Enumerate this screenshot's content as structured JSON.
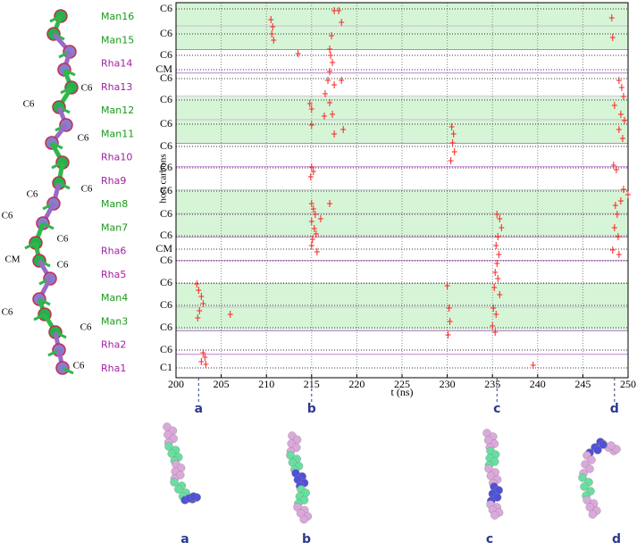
{
  "chart_data": {
    "type": "scatter",
    "ylabel": "host carbons",
    "xlabel": "t (ns)",
    "color": "#ff2020",
    "xlim": [
      200,
      250
    ],
    "xticks": [
      200,
      205,
      210,
      215,
      220,
      225,
      230,
      235,
      240,
      245,
      250
    ],
    "ylim": [
      0,
      420
    ],
    "yticks": [
      {
        "value": 413,
        "label": "C6"
      },
      {
        "value": 385,
        "label": "C6"
      },
      {
        "value": 361,
        "label": "C6"
      },
      {
        "value": 345,
        "label": "CM"
      },
      {
        "value": 335,
        "label": "C6"
      },
      {
        "value": 311,
        "label": "C6"
      },
      {
        "value": 284,
        "label": "C6"
      },
      {
        "value": 259,
        "label": "C6"
      },
      {
        "value": 235,
        "label": "C6"
      },
      {
        "value": 209,
        "label": "C6"
      },
      {
        "value": 183,
        "label": "C6"
      },
      {
        "value": 159,
        "label": "C6"
      },
      {
        "value": 144,
        "label": "CM"
      },
      {
        "value": 131,
        "label": "C6"
      },
      {
        "value": 106,
        "label": "C6"
      },
      {
        "value": 81,
        "label": "C6"
      },
      {
        "value": 56,
        "label": "C6"
      },
      {
        "value": 31,
        "label": "C6"
      },
      {
        "value": 11,
        "label": "C1"
      }
    ],
    "grid": true,
    "residues": [
      {
        "name": "Man16",
        "color": "#1a9a1a"
      },
      {
        "name": "Man15",
        "color": "#1a9a1a"
      },
      {
        "name": "Rha14",
        "color": "#a020a0"
      },
      {
        "name": "Rha13",
        "color": "#a020a0"
      },
      {
        "name": "Man12",
        "color": "#1a9a1a"
      },
      {
        "name": "Man11",
        "color": "#1a9a1a"
      },
      {
        "name": "Rha10",
        "color": "#a020a0"
      },
      {
        "name": "Rha9",
        "color": "#a020a0"
      },
      {
        "name": "Man8",
        "color": "#1a9a1a"
      },
      {
        "name": "Man7",
        "color": "#1a9a1a"
      },
      {
        "name": "Rha6",
        "color": "#a020a0"
      },
      {
        "name": "Rha5",
        "color": "#a020a0"
      },
      {
        "name": "Man4",
        "color": "#1a9a1a"
      },
      {
        "name": "Man3",
        "color": "#1a9a1a"
      },
      {
        "name": "Rha2",
        "color": "#a020a0"
      },
      {
        "name": "Rha1",
        "color": "#a020a0"
      }
    ],
    "molecule_labels": [
      "C6",
      "C6",
      "C6",
      "C6",
      "C6",
      "C6",
      "C6",
      "CM",
      "C6",
      "C6",
      "C6",
      "C6"
    ],
    "annotations": [
      {
        "text": "a",
        "x": 202.5
      },
      {
        "text": "b",
        "x": 215
      },
      {
        "text": "c",
        "x": 235.5
      },
      {
        "text": "d",
        "x": 248.5
      }
    ],
    "x": [
      202.3,
      202.5,
      202.8,
      203,
      202.6,
      202.4,
      203,
      203.2,
      202.8,
      203.3,
      206,
      210.5,
      210.7,
      210.6,
      210.8,
      214.8,
      215,
      215,
      215,
      215.2,
      214.9,
      215,
      215.2,
      215.4,
      215,
      215.3,
      215.5,
      215.1,
      215,
      215.6,
      216,
      217,
      217.5,
      218,
      218.3,
      217.2,
      217,
      217.1,
      217.3,
      217,
      216.8,
      217.5,
      216.5,
      217,
      217.3,
      216.4,
      217.5,
      218.5,
      218.3,
      213.5,
      230.5,
      230.7,
      230.6,
      230.8,
      230.4,
      230,
      230.2,
      230.3,
      230.1,
      235.5,
      235.8,
      236,
      235.6,
      235.4,
      235.7,
      235.5,
      235.3,
      235.6,
      235.2,
      235.8,
      235.1,
      235.4,
      235,
      235.3,
      239.5,
      248.2,
      248.3,
      249,
      249.3,
      249.5,
      248.5,
      249.2,
      249.6,
      249,
      249.4,
      248.4,
      248.7,
      249.5,
      250,
      249.2,
      248.6,
      248.8,
      248.5,
      248.9,
      248.3,
      249
    ],
    "values": [
      105,
      98,
      91,
      83,
      75,
      67,
      28,
      23,
      18,
      15,
      71,
      401,
      393,
      385,
      378,
      307,
      301,
      283,
      236,
      231,
      225,
      195,
      189,
      183,
      175,
      167,
      161,
      155,
      148,
      141,
      178,
      195,
      411,
      411,
      398,
      383,
      368,
      361,
      353,
      343,
      333,
      328,
      318,
      308,
      295,
      293,
      273,
      278,
      333,
      363,
      281,
      273,
      263,
      253,
      243,
      103,
      78,
      63,
      48,
      183,
      178,
      168,
      158,
      148,
      138,
      128,
      118,
      111,
      101,
      93,
      78,
      71,
      58,
      51,
      14,
      403,
      381,
      333,
      325,
      315,
      305,
      295,
      288,
      278,
      268,
      238,
      233,
      211,
      205,
      198,
      193,
      183,
      168,
      158,
      143,
      138
    ]
  }
}
